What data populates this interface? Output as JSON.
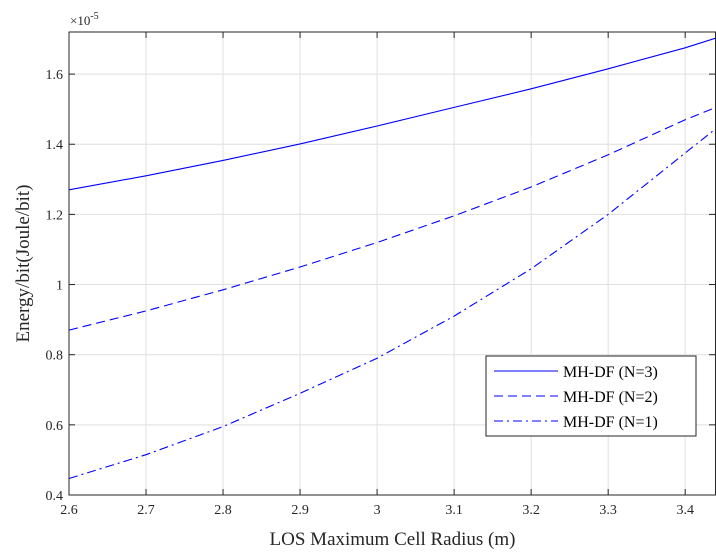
{
  "chart_data": {
    "type": "line",
    "title": "",
    "xlabel": "LOS Maximum Cell Radius (m)",
    "ylabel": "Energy/bit(Joule/bit)",
    "y_multiplier": {
      "base": "×10",
      "exponent": "-5"
    },
    "xlim": [
      2.6,
      3.44
    ],
    "ylim": [
      0.4,
      1.72
    ],
    "x_ticks": [
      2.6,
      2.7,
      2.8,
      2.9,
      3.0,
      3.1,
      3.2,
      3.3,
      3.4
    ],
    "x_tick_labels": [
      "2.6",
      "2.7",
      "2.8",
      "2.9",
      "3",
      "3.1",
      "3.2",
      "3.3",
      "3.4"
    ],
    "y_ticks": [
      0.4,
      0.6,
      0.8,
      1.0,
      1.2,
      1.4,
      1.6
    ],
    "y_tick_labels": [
      "0.4",
      "0.6",
      "0.8",
      "1",
      "1.2",
      "1.4",
      "1.6"
    ],
    "grid": true,
    "legend_position": "bottom-right",
    "x": [
      2.6,
      2.7,
      2.8,
      2.9,
      3.0,
      3.1,
      3.2,
      3.3,
      3.4,
      3.44
    ],
    "series": [
      {
        "name": "MH-DF (N=3)",
        "style": "solid",
        "color": "#0000ff",
        "values": [
          1.27,
          1.31,
          1.354,
          1.401,
          1.452,
          1.505,
          1.558,
          1.615,
          1.675,
          1.703
        ]
      },
      {
        "name": "MH-DF (N=2)",
        "style": "dashed",
        "color": "#0000ff",
        "values": [
          0.87,
          0.925,
          0.985,
          1.05,
          1.12,
          1.196,
          1.278,
          1.37,
          1.47,
          1.505
        ]
      },
      {
        "name": "MH-DF (N=1)",
        "style": "dashdot",
        "color": "#0000ff",
        "values": [
          0.447,
          0.515,
          0.595,
          0.69,
          0.79,
          0.91,
          1.045,
          1.2,
          1.375,
          1.445
        ]
      }
    ]
  }
}
